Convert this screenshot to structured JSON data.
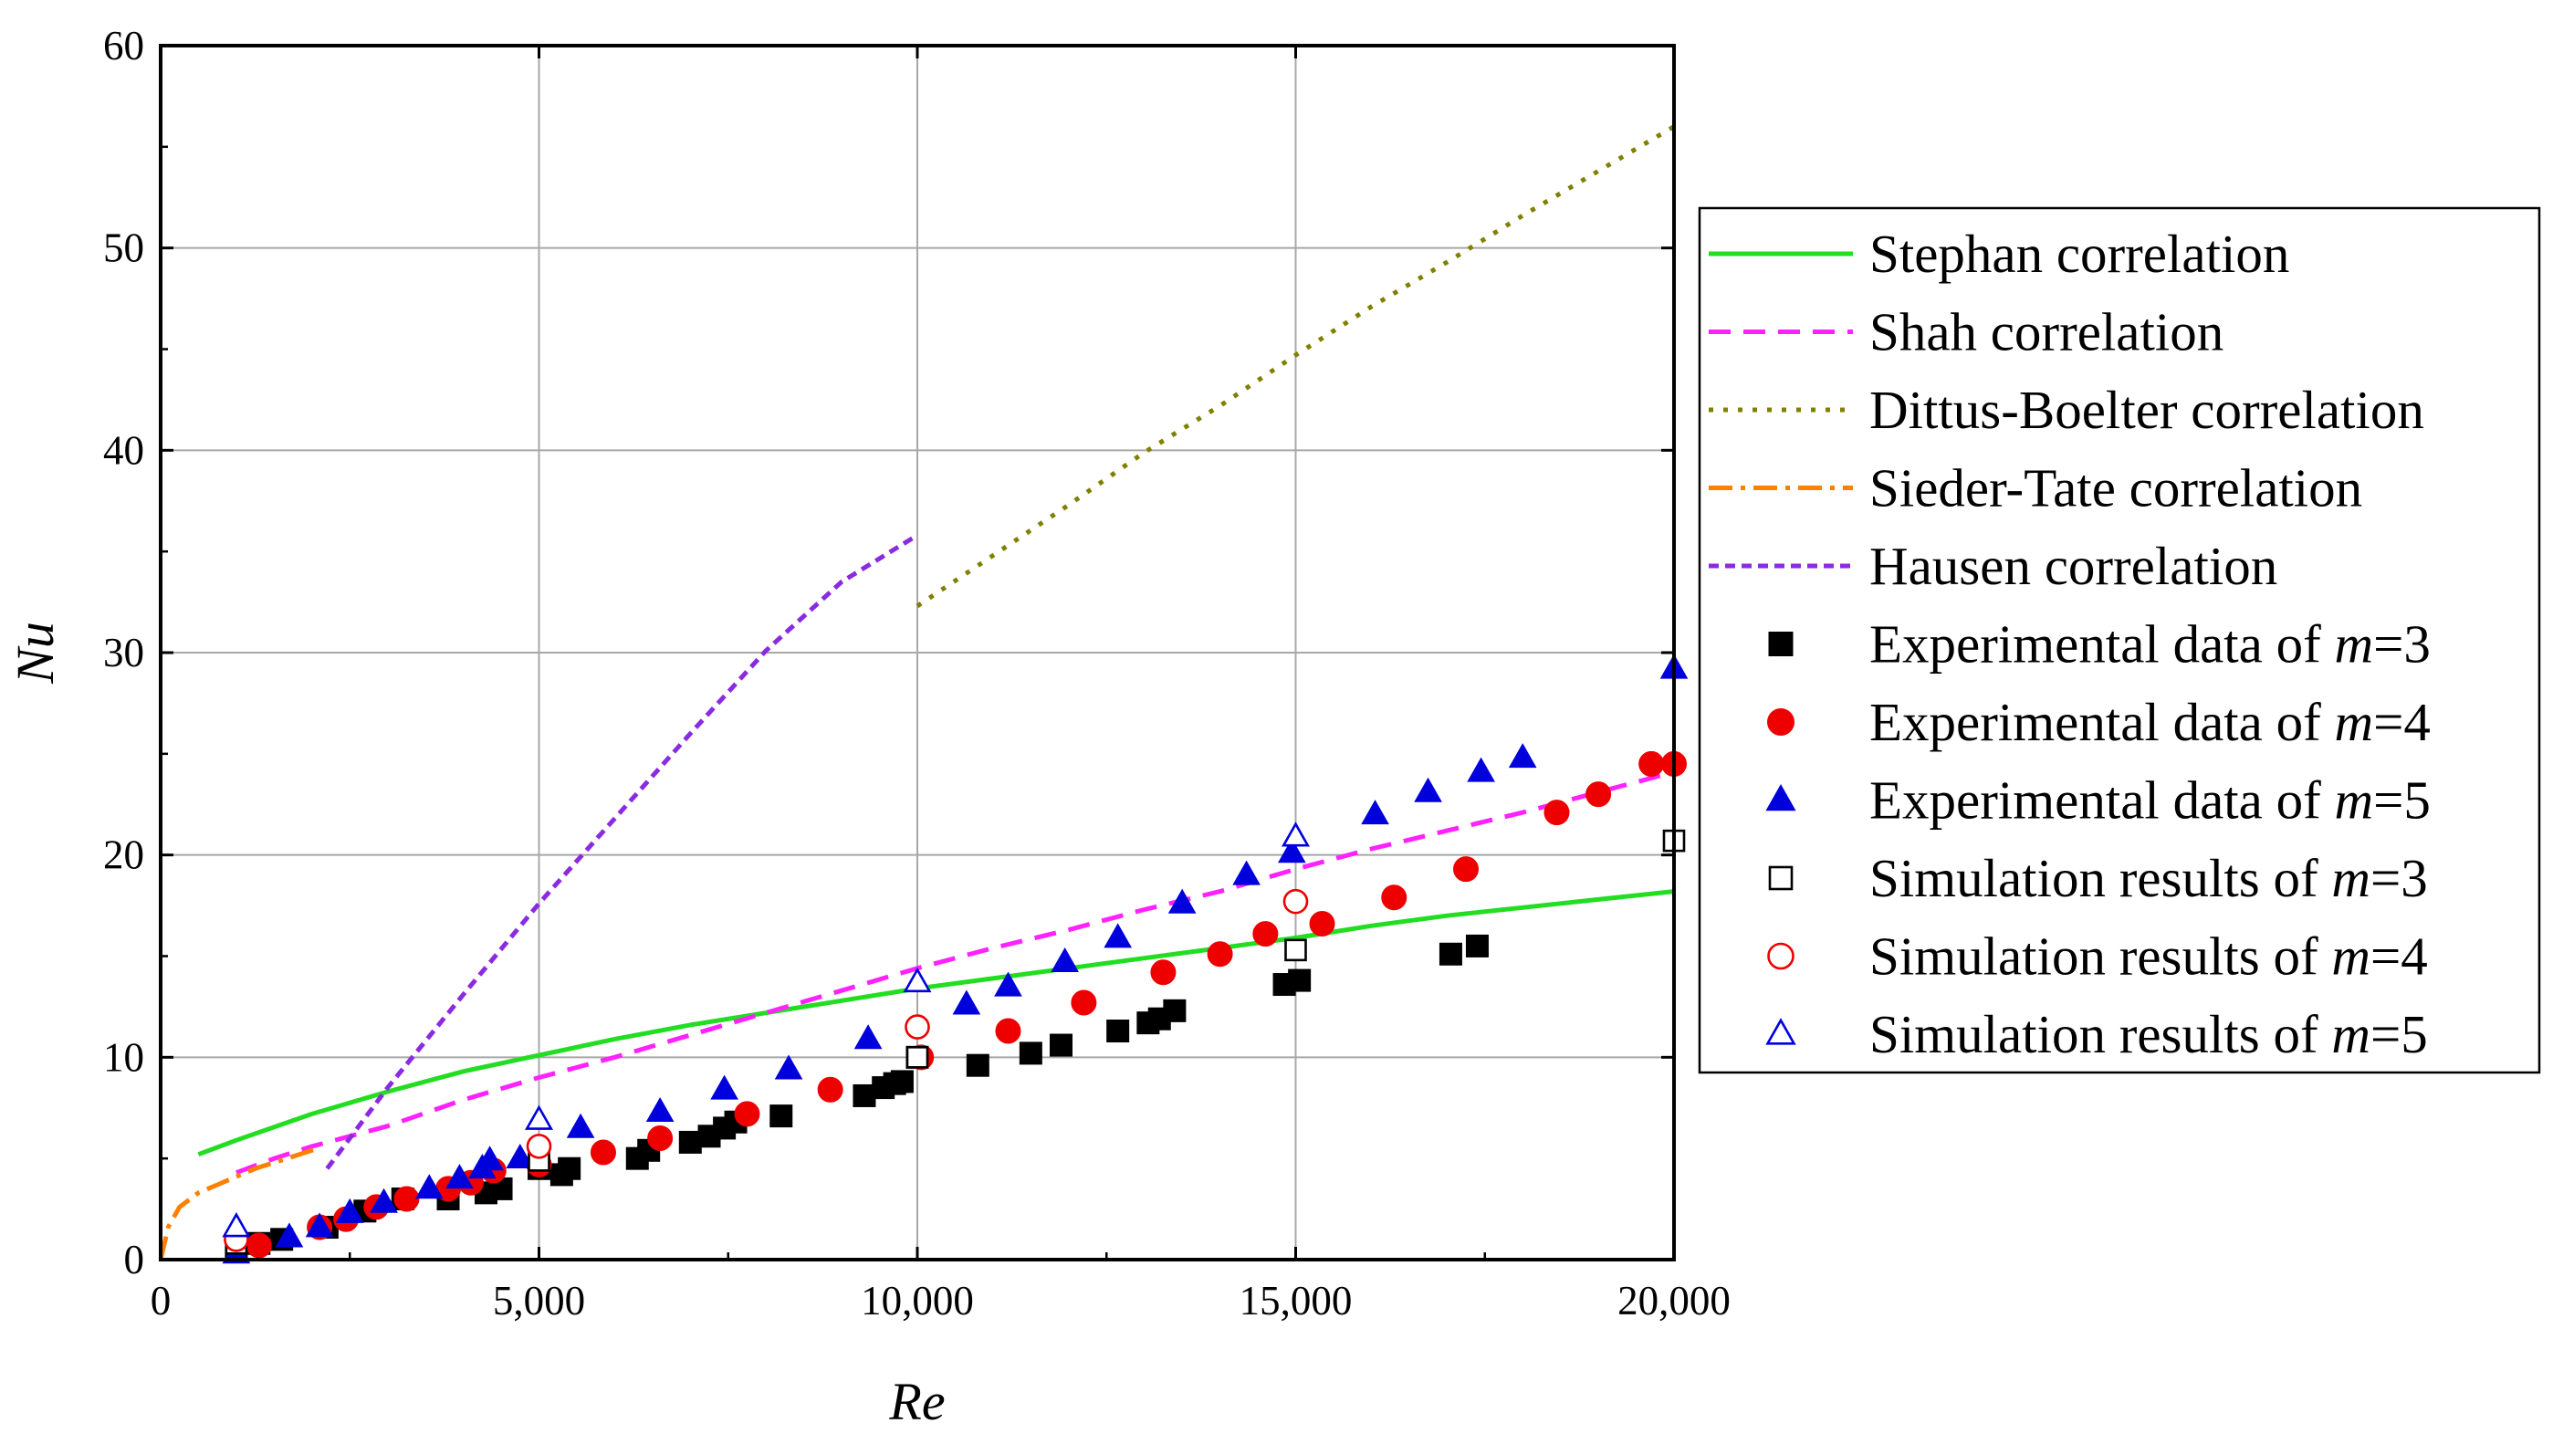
{
  "chart_data": {
    "type": "scatter",
    "xlabel": "Re",
    "ylabel": "Nu",
    "xlim": [
      0,
      20000
    ],
    "ylim": [
      0,
      60
    ],
    "x_ticks": [
      0,
      5000,
      10000,
      15000,
      20000
    ],
    "x_tick_labels": [
      "0",
      "5,000",
      "10,000",
      "15,000",
      "20,000"
    ],
    "y_ticks": [
      0,
      10,
      20,
      30,
      40,
      50,
      60
    ],
    "y_tick_labels": [
      "0",
      "10",
      "20",
      "30",
      "40",
      "50",
      "60"
    ],
    "grid": true,
    "legend_position": "right",
    "colors": {
      "stephan": "#22dd22",
      "shah": "#ff22ff",
      "dittus": "#808000",
      "sieder": "#ff8000",
      "hausen": "#8a2be2",
      "m3": "#000000",
      "m4": "#ee0000",
      "m5": "#0000dd"
    },
    "series": [
      {
        "name": "Stephan correlation",
        "kind": "line",
        "style": "solid",
        "color_key": "stephan",
        "x": [
          500,
          1000,
          2000,
          3000,
          4000,
          5000,
          6000,
          7000,
          8000,
          9000,
          10000,
          11000,
          12000,
          13000,
          14000,
          15000,
          16000,
          17000,
          18000,
          19000,
          20000
        ],
        "y": [
          5.2,
          5.9,
          7.2,
          8.3,
          9.3,
          10.1,
          10.9,
          11.6,
          12.2,
          12.8,
          13.4,
          13.9,
          14.4,
          14.9,
          15.4,
          15.9,
          16.5,
          17.0,
          17.4,
          17.8,
          18.2
        ]
      },
      {
        "name": "Shah correlation",
        "kind": "line",
        "style": "dashed",
        "color_key": "shah",
        "x": [
          1000,
          1500,
          2000,
          3000,
          4000,
          5000,
          6000,
          7000,
          8000,
          9000,
          10000,
          11000,
          12000,
          13000,
          14000,
          15000,
          16000,
          17000,
          18000,
          19000,
          20000
        ],
        "y": [
          4.3,
          5.0,
          5.6,
          6.6,
          7.9,
          9.0,
          10.0,
          11.1,
          12.2,
          13.3,
          14.4,
          15.4,
          16.3,
          17.3,
          18.2,
          19.3,
          20.3,
          21.2,
          22.1,
          23.1,
          24.1
        ]
      },
      {
        "name": "Dittus-Boelter correlation",
        "kind": "line",
        "style": "dotted",
        "color_key": "dittus",
        "x": [
          10000,
          11000,
          12000,
          13000,
          14000,
          15000,
          16000,
          17000,
          18000,
          19000,
          20000
        ],
        "y": [
          32.3,
          34.8,
          37.3,
          39.9,
          42.2,
          44.7,
          47.1,
          49.3,
          51.6,
          53.8,
          56.0
        ]
      },
      {
        "name": "Sieder-Tate correlation",
        "kind": "line",
        "style": "dashdot",
        "color_key": "sieder",
        "x": [
          0,
          100,
          250,
          500,
          750,
          1000,
          1250,
          1500,
          1750,
          2000,
          2100
        ],
        "y": [
          0.0,
          1.6,
          2.6,
          3.3,
          3.7,
          4.1,
          4.5,
          4.8,
          5.1,
          5.4,
          5.5
        ]
      },
      {
        "name": "Hausen correlation",
        "kind": "line",
        "style": "shortdash",
        "color_key": "hausen",
        "x": [
          2200,
          2500,
          3000,
          4000,
          5000,
          6000,
          7000,
          8000,
          9000,
          10000
        ],
        "y": [
          4.5,
          6.0,
          8.5,
          13.1,
          17.6,
          21.8,
          26.0,
          30.1,
          33.5,
          35.8
        ]
      },
      {
        "name": "Experimental data of m=3",
        "kind": "marker",
        "marker": "square",
        "fill": true,
        "color_key": "m3",
        "x": [
          1000,
          1300,
          1600,
          2200,
          2700,
          3200,
          3800,
          4300,
          4500,
          5000,
          5300,
          5400,
          6300,
          6450,
          7000,
          7250,
          7450,
          7600,
          8200,
          9300,
          9550,
          9700,
          9800,
          10000,
          10800,
          11500,
          11900,
          12650,
          13050,
          13200,
          13400,
          14850,
          15050,
          17050,
          17400
        ],
        "y": [
          0.4,
          0.8,
          1.0,
          1.6,
          2.4,
          3.0,
          3.0,
          3.3,
          3.5,
          4.5,
          4.2,
          4.5,
          5.0,
          5.4,
          5.8,
          6.1,
          6.5,
          6.8,
          7.1,
          8.1,
          8.5,
          8.7,
          8.8,
          10.0,
          9.6,
          10.2,
          10.6,
          11.3,
          11.7,
          11.9,
          12.3,
          13.6,
          13.8,
          15.1,
          15.5
        ]
      },
      {
        "name": "Experimental data of m=4",
        "kind": "marker",
        "marker": "circle",
        "fill": true,
        "color_key": "m4",
        "x": [
          1300,
          2100,
          2450,
          2850,
          3250,
          3800,
          4100,
          4400,
          5000,
          5850,
          6600,
          7750,
          8850,
          10050,
          11200,
          12200,
          13250,
          14000,
          14600,
          15350,
          16300,
          17250,
          18450,
          19000,
          19700,
          20000
        ],
        "y": [
          0.7,
          1.6,
          2.0,
          2.6,
          3.0,
          3.5,
          3.8,
          4.4,
          4.7,
          5.3,
          6.0,
          7.2,
          8.4,
          10.0,
          11.3,
          12.7,
          14.2,
          15.1,
          16.1,
          16.6,
          17.9,
          19.3,
          22.1,
          23.0,
          24.5,
          24.5
        ]
      },
      {
        "name": "Experimental data of m=5",
        "kind": "marker",
        "marker": "triangle",
        "fill": true,
        "color_key": "m5",
        "x": [
          1000,
          1700,
          2100,
          2500,
          2950,
          3550,
          3950,
          4250,
          4350,
          4750,
          5550,
          6600,
          7450,
          8300,
          9350,
          10650,
          11200,
          11950,
          12650,
          13500,
          14350,
          14950,
          16050,
          16750,
          17450,
          18000,
          20000
        ],
        "y": [
          0.3,
          1.1,
          1.6,
          2.3,
          2.8,
          3.5,
          4.0,
          4.5,
          4.9,
          5.0,
          6.5,
          7.3,
          8.4,
          9.4,
          10.9,
          12.6,
          13.5,
          14.7,
          15.9,
          17.6,
          19.0,
          20.1,
          22.0,
          23.1,
          24.1,
          24.8,
          29.2
        ]
      },
      {
        "name": "Simulation results of m=3",
        "kind": "marker",
        "marker": "square",
        "fill": false,
        "color_key": "m3",
        "x": [
          1000,
          5000,
          10000,
          15000,
          20000
        ],
        "y": [
          0.8,
          4.9,
          10.0,
          15.3,
          20.7
        ]
      },
      {
        "name": "Simulation results of m=4",
        "kind": "marker",
        "marker": "circle",
        "fill": false,
        "color_key": "m4",
        "x": [
          1000,
          5000,
          10000,
          15000
        ],
        "y": [
          1.0,
          5.6,
          11.5,
          17.7
        ]
      },
      {
        "name": "Simulation results of m=5",
        "kind": "marker",
        "marker": "triangle",
        "fill": false,
        "color_key": "m5",
        "x": [
          1000,
          5000,
          10000,
          15000
        ],
        "y": [
          1.6,
          6.9,
          13.7,
          20.9
        ]
      }
    ],
    "legend": [
      {
        "pre": "Stephan correlation",
        "var": "",
        "post": ""
      },
      {
        "pre": "Shah correlation",
        "var": "",
        "post": ""
      },
      {
        "pre": "Dittus-Boelter correlation",
        "var": "",
        "post": ""
      },
      {
        "pre": "Sieder-Tate correlation",
        "var": "",
        "post": ""
      },
      {
        "pre": "Hausen correlation",
        "var": "",
        "post": ""
      },
      {
        "pre": "Experimental data of ",
        "var": "m",
        "post": "=3"
      },
      {
        "pre": "Experimental data of ",
        "var": "m",
        "post": "=4"
      },
      {
        "pre": "Experimental data of ",
        "var": "m",
        "post": "=5"
      },
      {
        "pre": "Simulation results of ",
        "var": "m",
        "post": "=3"
      },
      {
        "pre": "Simulation results of ",
        "var": "m",
        "post": "=4"
      },
      {
        "pre": "Simulation results of ",
        "var": "m",
        "post": "=5"
      }
    ]
  }
}
